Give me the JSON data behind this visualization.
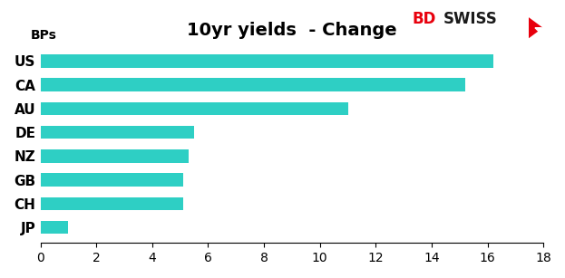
{
  "title": "10yr yields  - Change",
  "ylabel_top": "BPs",
  "categories": [
    "JP",
    "CH",
    "GB",
    "NZ",
    "DE",
    "AU",
    "CA",
    "US"
  ],
  "values": [
    1.0,
    5.1,
    5.1,
    5.3,
    5.5,
    11.0,
    15.2,
    16.2
  ],
  "bar_color": "#2ECFC4",
  "xlim": [
    0,
    18
  ],
  "xticks": [
    0,
    2,
    4,
    6,
    8,
    10,
    12,
    14,
    16,
    18
  ],
  "background_color": "#ffffff",
  "title_fontsize": 14,
  "label_fontsize": 11,
  "tick_fontsize": 10,
  "bps_fontsize": 10,
  "bd_fontsize": 12,
  "swiss_fontsize": 12,
  "bar_height": 0.55
}
